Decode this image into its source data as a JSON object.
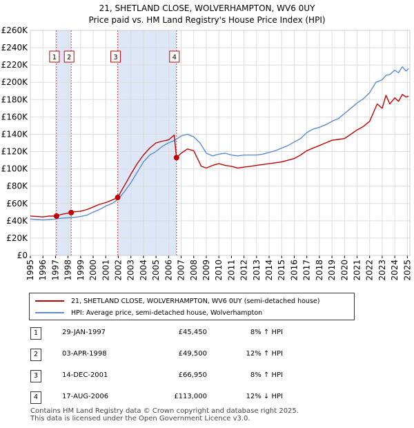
{
  "colors": {
    "property_line": "#c00000",
    "hpi_line": "#5b8ccc",
    "shade": "#dde7f7",
    "grid": "#dddddd",
    "marker_box": "#c00000"
  },
  "title": {
    "line1": "21, SHETLAND CLOSE, WOLVERHAMPTON, WV6 0UY",
    "line2": "Price paid vs. HM Land Registry's House Price Index (HPI)"
  },
  "chart_data": {
    "type": "line",
    "ylim": [
      0,
      260000
    ],
    "xlim": [
      1995,
      2025.2
    ],
    "y_ticks": [
      0,
      20000,
      40000,
      60000,
      80000,
      100000,
      120000,
      140000,
      160000,
      180000,
      200000,
      220000,
      240000,
      260000
    ],
    "y_tick_labels": [
      "£0",
      "£20K",
      "£40K",
      "£60K",
      "£80K",
      "£100K",
      "£120K",
      "£140K",
      "£160K",
      "£180K",
      "£200K",
      "£220K",
      "£240K",
      "£260K"
    ],
    "x_ticks": [
      1995,
      1996,
      1997,
      1998,
      1999,
      2000,
      2001,
      2002,
      2003,
      2004,
      2005,
      2006,
      2007,
      2008,
      2009,
      2010,
      2011,
      2012,
      2013,
      2014,
      2015,
      2016,
      2017,
      2018,
      2019,
      2020,
      2021,
      2022,
      2023,
      2024,
      2025
    ],
    "x_tick_labels": [
      "1995",
      "1996",
      "1997",
      "1998",
      "1999",
      "2000",
      "2001",
      "2002",
      "2003",
      "2004",
      "2005",
      "2006",
      "2007",
      "2008",
      "2009",
      "2010",
      "2011",
      "2012",
      "2013",
      "2014",
      "2015",
      "2016",
      "2017",
      "2018",
      "2019",
      "2020",
      "2021",
      "2022",
      "2023",
      "2024",
      "2025"
    ],
    "shaded_ranges": [
      [
        1997.08,
        1998.25
      ],
      [
        2001.95,
        2006.63
      ]
    ],
    "sales": [
      {
        "id": "1",
        "x": 1997.08,
        "y": 45450
      },
      {
        "id": "2",
        "x": 1998.25,
        "y": 49500
      },
      {
        "id": "3",
        "x": 2001.95,
        "y": 66950
      },
      {
        "id": "4",
        "x": 2006.63,
        "y": 113000
      }
    ],
    "series": [
      {
        "name": "21, SHETLAND CLOSE, WOLVERHAMPTON, WV6 0UY (semi-detached house)",
        "color": "#c00000",
        "x": [
          1995,
          1995.5,
          1996,
          1996.5,
          1997.08,
          1997.5,
          1998.25,
          1998.5,
          1999,
          1999.5,
          2000,
          2000.5,
          2001,
          2001.5,
          2001.95,
          2002.3,
          2002.7,
          2003,
          2003.5,
          2004,
          2004.5,
          2005,
          2005.5,
          2006,
          2006.45,
          2006.63,
          2007,
          2007.5,
          2008,
          2008.3,
          2008.6,
          2009,
          2009.5,
          2010,
          2010.5,
          2011,
          2011.5,
          2012,
          2012.5,
          2013,
          2013.5,
          2014,
          2014.5,
          2015,
          2015.5,
          2016,
          2016.5,
          2017,
          2017.5,
          2018,
          2018.5,
          2019,
          2019.5,
          2020,
          2020.5,
          2021,
          2021.5,
          2022,
          2022.3,
          2022.6,
          2023,
          2023.3,
          2023.6,
          2024,
          2024.3,
          2024.6,
          2024.9,
          2025.1
        ],
        "y": [
          45500,
          45000,
          44500,
          45500,
          45450,
          47500,
          49500,
          50500,
          51000,
          53000,
          56000,
          59000,
          61000,
          64000,
          66950,
          76000,
          86000,
          94000,
          106000,
          116000,
          124000,
          130000,
          132000,
          133500,
          139000,
          113000,
          118000,
          123000,
          121000,
          112000,
          103000,
          101000,
          104000,
          106000,
          104000,
          103000,
          101000,
          102000,
          103000,
          104000,
          105000,
          106000,
          107000,
          108000,
          110000,
          112000,
          116000,
          121000,
          124000,
          127000,
          130000,
          133000,
          134000,
          135000,
          140000,
          145000,
          149000,
          155000,
          165000,
          175000,
          170000,
          185000,
          175000,
          182000,
          178000,
          186000,
          183000,
          184000
        ]
      },
      {
        "name": "HPI: Average price, semi-detached house, Wolverhampton",
        "color": "#5b8ccc",
        "x": [
          1995,
          1995.5,
          1996,
          1996.5,
          1997,
          1997.5,
          1998,
          1998.5,
          1999,
          1999.5,
          2000,
          2000.5,
          2001,
          2001.5,
          2002,
          2002.5,
          2003,
          2003.5,
          2004,
          2004.5,
          2005,
          2005.5,
          2006,
          2006.5,
          2007,
          2007.5,
          2008,
          2008.5,
          2009,
          2009.5,
          2010,
          2010.5,
          2011,
          2011.5,
          2012,
          2012.5,
          2013,
          2013.5,
          2014,
          2014.5,
          2015,
          2015.5,
          2016,
          2016.5,
          2017,
          2017.5,
          2018,
          2018.5,
          2019,
          2019.5,
          2020,
          2020.5,
          2021,
          2021.5,
          2022,
          2022.5,
          2023,
          2023.3,
          2023.6,
          2024,
          2024.3,
          2024.6,
          2024.9,
          2025.1
        ],
        "y": [
          42000,
          41500,
          41000,
          41500,
          42000,
          43000,
          43500,
          44000,
          45000,
          46500,
          50000,
          53000,
          57000,
          60000,
          65000,
          74000,
          84000,
          96000,
          108000,
          116000,
          120000,
          126000,
          130000,
          133000,
          138000,
          140000,
          137000,
          130000,
          118000,
          115000,
          117000,
          118000,
          116000,
          115000,
          116000,
          116000,
          116000,
          117000,
          119000,
          121000,
          124000,
          127000,
          131000,
          135000,
          142000,
          146000,
          148000,
          151000,
          155000,
          158000,
          164000,
          170000,
          176000,
          181000,
          188000,
          200000,
          203000,
          208000,
          209000,
          214000,
          211000,
          218000,
          213000,
          216000
        ]
      }
    ]
  },
  "legend": {
    "property_label": "21, SHETLAND CLOSE, WOLVERHAMPTON, WV6 0UY (semi-detached house)",
    "hpi_label": "HPI: Average price, semi-detached house, Wolverhampton"
  },
  "sales_table": [
    {
      "num": "1",
      "date": "29-JAN-1997",
      "price": "£45,450",
      "hpi": "8% ↑ HPI"
    },
    {
      "num": "2",
      "date": "03-APR-1998",
      "price": "£49,500",
      "hpi": "12% ↑ HPI"
    },
    {
      "num": "3",
      "date": "14-DEC-2001",
      "price": "£66,950",
      "hpi": "8% ↑ HPI"
    },
    {
      "num": "4",
      "date": "17-AUG-2006",
      "price": "£113,000",
      "hpi": "12% ↓ HPI"
    }
  ],
  "footer": {
    "line1": "Contains HM Land Registry data © Crown copyright and database right 2025.",
    "line2": "This data is licensed under the Open Government Licence v3.0."
  }
}
